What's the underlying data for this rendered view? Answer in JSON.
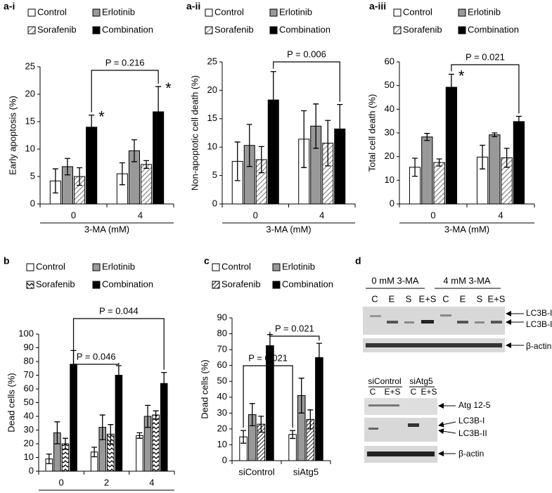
{
  "chart_data": [
    {
      "type": "bar",
      "panel": "a-i",
      "ylabel": "Early apoptosis (%)",
      "xlabel": "3-MA (mM)",
      "categories": [
        "0",
        "4"
      ],
      "series": [
        {
          "name": "Control",
          "color": "#ffffff",
          "values": [
            4.2,
            5.5
          ],
          "errors": [
            2.2,
            2.0
          ]
        },
        {
          "name": "Erlotinib",
          "color": "#999999",
          "values": [
            6.8,
            9.7
          ],
          "errors": [
            1.5,
            2.0
          ]
        },
        {
          "name": "Sorafenib",
          "color": "#ffffff",
          "pattern": "diagonal",
          "values": [
            5.0,
            7.2
          ],
          "errors": [
            1.6,
            0.7
          ]
        },
        {
          "name": "Combination",
          "color": "#000000",
          "values": [
            14.0,
            16.8
          ],
          "errors": [
            2.2,
            4.6
          ]
        }
      ],
      "ylim": [
        0,
        25
      ],
      "yticks": [
        0,
        5,
        10,
        15,
        20,
        25
      ],
      "p_values": [
        "P = 0.216"
      ],
      "asterisk": "*"
    },
    {
      "type": "bar",
      "panel": "a-ii",
      "ylabel": "Non-apoptotic cell death (%)",
      "xlabel": "3-MA (mM)",
      "categories": [
        "0",
        "4"
      ],
      "series": [
        {
          "name": "Control",
          "color": "#ffffff",
          "values": [
            7.5,
            11.4
          ],
          "errors": [
            3.4,
            5.0
          ]
        },
        {
          "name": "Erlotinib",
          "color": "#999999",
          "values": [
            10.3,
            13.7
          ],
          "errors": [
            3.7,
            3.9
          ]
        },
        {
          "name": "Sorafenib",
          "color": "#ffffff",
          "pattern": "diagonal",
          "values": [
            7.8,
            10.7
          ],
          "errors": [
            2.3,
            4.0
          ]
        },
        {
          "name": "Combination",
          "color": "#000000",
          "values": [
            18.3,
            13.2
          ],
          "errors": [
            5.0,
            4.3
          ]
        }
      ],
      "ylim": [
        0,
        25
      ],
      "yticks": [
        0,
        5,
        10,
        15,
        20,
        25
      ],
      "p_values": [
        "P = 0.006"
      ]
    },
    {
      "type": "bar",
      "panel": "a-iii",
      "ylabel": "Total cell death (%)",
      "xlabel": "3-MA (mM)",
      "categories": [
        "0",
        "4"
      ],
      "series": [
        {
          "name": "Control",
          "color": "#ffffff",
          "values": [
            15.5,
            19.8
          ],
          "errors": [
            3.8,
            5.0
          ]
        },
        {
          "name": "Erlotinib",
          "color": "#999999",
          "values": [
            28.3,
            29.2
          ],
          "errors": [
            1.5,
            0.8
          ]
        },
        {
          "name": "Sorafenib",
          "color": "#ffffff",
          "pattern": "diagonal",
          "values": [
            17.5,
            19.5
          ],
          "errors": [
            1.5,
            4.0
          ]
        },
        {
          "name": "Combination",
          "color": "#000000",
          "values": [
            49.3,
            34.8
          ],
          "errors": [
            5.5,
            2.2
          ]
        }
      ],
      "ylim": [
        0,
        60
      ],
      "yticks": [
        0,
        10,
        20,
        30,
        40,
        50,
        60
      ],
      "p_values": [
        "P = 0.021"
      ],
      "asterisk": "*"
    },
    {
      "type": "bar",
      "panel": "b",
      "ylabel": "Dead cells (%)",
      "xlabel": "3-MA (mM)",
      "categories": [
        "0",
        "2",
        "4"
      ],
      "series": [
        {
          "name": "Control",
          "color": "#ffffff",
          "values": [
            9,
            14,
            26
          ],
          "errors": [
            3.5,
            3.5,
            2
          ]
        },
        {
          "name": "Erlotinib",
          "color": "#999999",
          "values": [
            28,
            32,
            40
          ],
          "errors": [
            8,
            9,
            8
          ]
        },
        {
          "name": "Sorafenib",
          "color": "#ffffff",
          "pattern": "zigzag",
          "values": [
            20,
            27,
            41
          ],
          "errors": [
            4,
            7,
            3
          ]
        },
        {
          "name": "Combination",
          "color": "#000000",
          "values": [
            78,
            70,
            64
          ],
          "errors": [
            10,
            7,
            8
          ]
        }
      ],
      "ylim": [
        0,
        100
      ],
      "yticks": [
        0,
        10,
        20,
        30,
        40,
        50,
        60,
        70,
        80,
        90,
        100
      ],
      "p_values": [
        "P = 0.046",
        "P = 0.044"
      ]
    },
    {
      "type": "bar",
      "panel": "c",
      "ylabel": "Dead cells (%)",
      "categories": [
        "siControl",
        "siAtg5"
      ],
      "series": [
        {
          "name": "Control",
          "color": "#ffffff",
          "values": [
            15,
            16.5
          ],
          "errors": [
            4,
            2.5
          ]
        },
        {
          "name": "Erlotinib",
          "color": "#999999",
          "values": [
            29,
            41
          ],
          "errors": [
            7,
            11
          ]
        },
        {
          "name": "Sorafenib",
          "color": "#ffffff",
          "pattern": "dense",
          "values": [
            23,
            26
          ],
          "errors": [
            5,
            6
          ]
        },
        {
          "name": "Combination",
          "color": "#000000",
          "values": [
            72.5,
            65
          ],
          "errors": [
            7,
            9
          ]
        }
      ],
      "ylim": [
        0,
        90
      ],
      "yticks": [
        0,
        10,
        20,
        30,
        40,
        50,
        60,
        70,
        80,
        90
      ],
      "p_values": [
        "P = 0.021",
        "P = 0.021"
      ]
    }
  ],
  "blot_panel": {
    "label": "d",
    "top": {
      "groups": [
        "0 mM 3-MA",
        "4 mM 3-MA"
      ],
      "lanes": [
        "C",
        "E",
        "S",
        "E+S",
        "C",
        "E",
        "S",
        "E+S"
      ],
      "markers": [
        "LC3B-I",
        "LC3B-II",
        "β-actin"
      ]
    },
    "bottom": {
      "groups": [
        "siControl",
        "siAtg5"
      ],
      "lanes": [
        "C",
        "E+S",
        "C",
        "E+S"
      ],
      "markers": [
        "Atg 12-5",
        "LC3B-I",
        "LC3B-II",
        "β-actin"
      ]
    }
  }
}
